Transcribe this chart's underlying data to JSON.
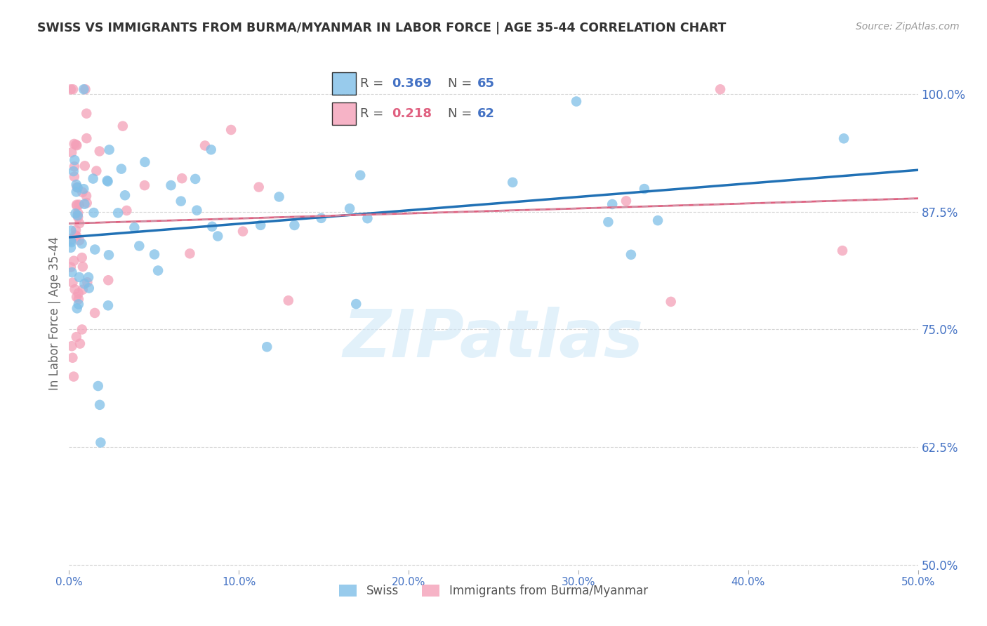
{
  "title": "SWISS VS IMMIGRANTS FROM BURMA/MYANMAR IN LABOR FORCE | AGE 35-44 CORRELATION CHART",
  "source_text": "Source: ZipAtlas.com",
  "ylabel": "In Labor Force | Age 35-44",
  "xlim": [
    0.0,
    0.5
  ],
  "ylim": [
    0.495,
    1.04
  ],
  "yticks": [
    0.5,
    0.625,
    0.75,
    0.875,
    1.0
  ],
  "ytick_labels": [
    "50.0%",
    "62.5%",
    "75.0%",
    "87.5%",
    "100.0%"
  ],
  "xticks": [
    0.0,
    0.1,
    0.2,
    0.3,
    0.4,
    0.5
  ],
  "xtick_labels": [
    "0.0%",
    "10.0%",
    "20.0%",
    "30.0%",
    "40.0%",
    "50.0%"
  ],
  "swiss_color": "#7fbfe8",
  "burma_color": "#f4a0b8",
  "swiss_line_color": "#2171b5",
  "burma_line_color": "#e06080",
  "burma_dashed_color": "#c8a0b0",
  "background_color": "#ffffff",
  "grid_color": "#cccccc",
  "tick_color": "#4472c4",
  "label_color": "#666666",
  "title_color": "#333333",
  "source_color": "#999999",
  "watermark_text": "ZIPatlas",
  "watermark_color": "#d0e8f8",
  "swiss_N": 65,
  "burma_N": 62,
  "swiss_R": "0.369",
  "burma_R": "0.218",
  "legend_swiss_R_color": "#4472c4",
  "legend_burma_R_color": "#e06080",
  "legend_N_color": "#4472c4"
}
